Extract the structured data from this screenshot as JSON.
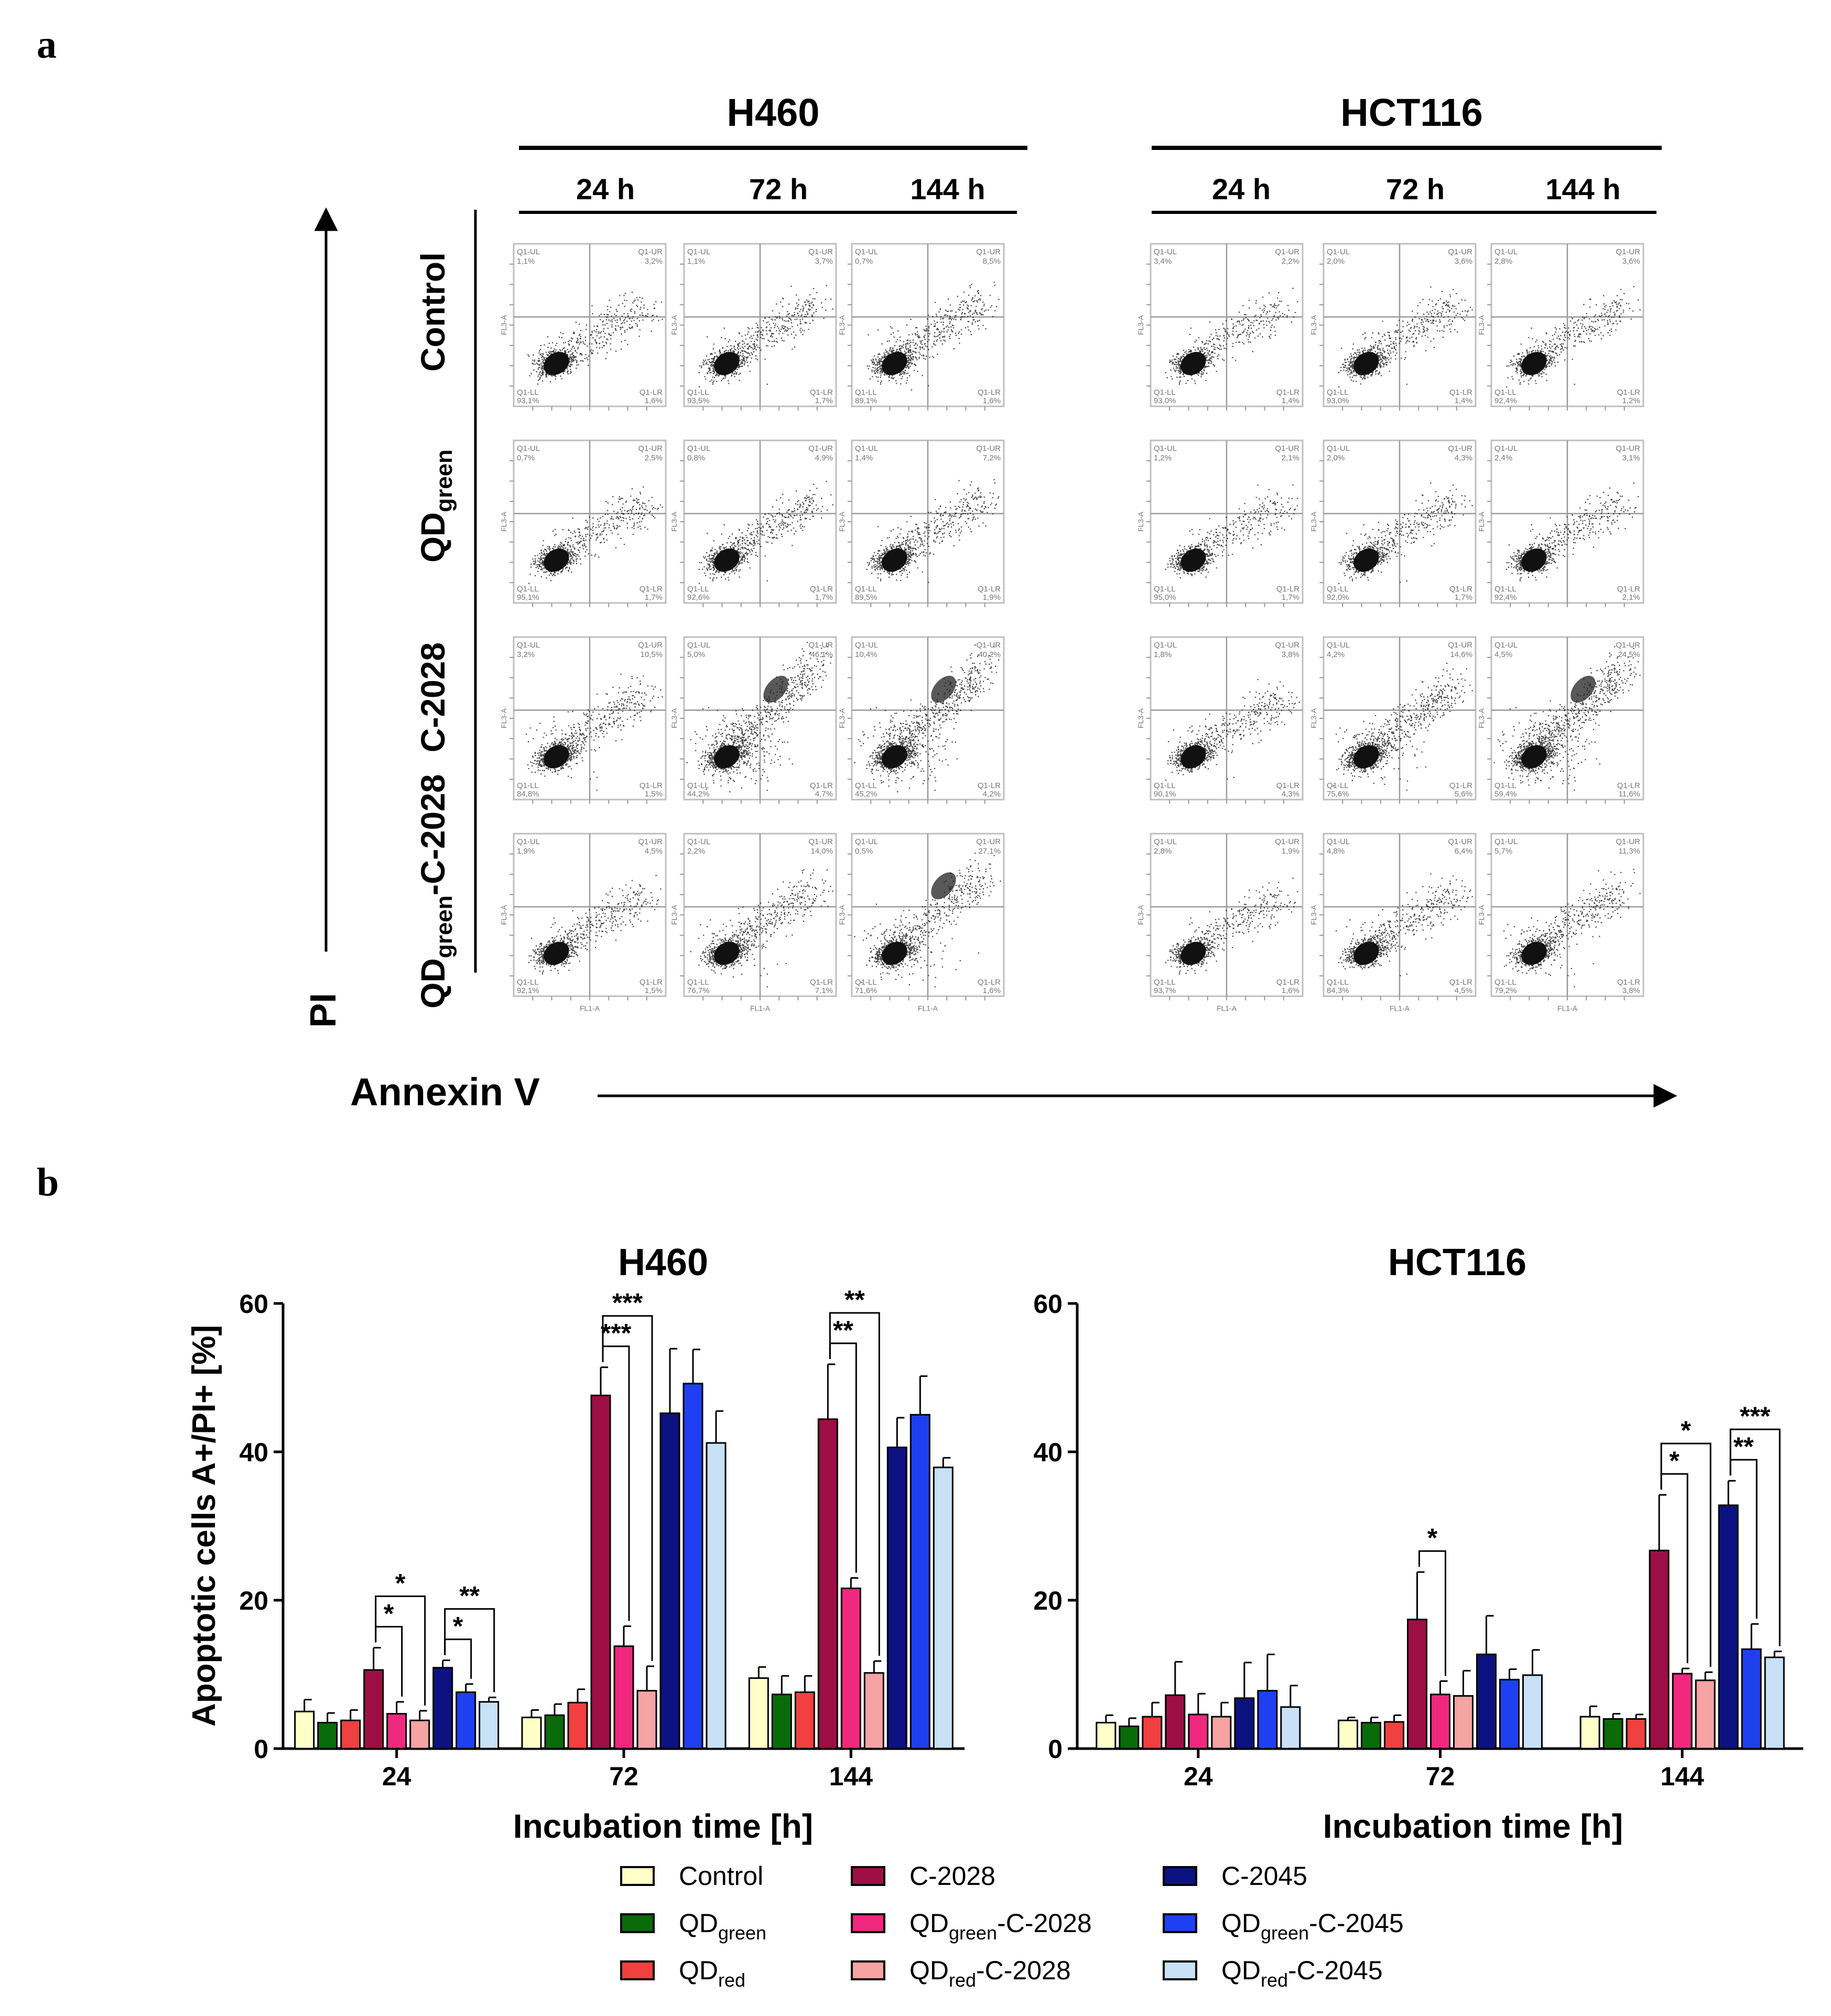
{
  "panel_a": {
    "label": "a",
    "groups": [
      {
        "name": "H460",
        "times": [
          "24 h",
          "72 h",
          "144 h"
        ]
      },
      {
        "name": "HCT116",
        "times": [
          "24 h",
          "72 h",
          "144 h"
        ]
      }
    ],
    "row_labels": [
      {
        "main": "Control",
        "sub": "",
        "tail": ""
      },
      {
        "main": "QD",
        "sub": "green",
        "tail": ""
      },
      {
        "main": "C-2028",
        "sub": "",
        "tail": ""
      },
      {
        "main": "QD",
        "sub": "green",
        "tail": "-C-2028"
      }
    ],
    "y_axis_label": "PI",
    "x_axis_label": "Annexin V",
    "quadrant_labels": [
      "Q1-UL",
      "Q1-UR",
      "Q1-LL",
      "Q1-LR"
    ],
    "axis_tick_labels": {
      "x": "FL1-A",
      "y": "FL3-A"
    },
    "plots": {
      "H460": [
        {
          "ul": "1,1%",
          "ur": "3,2%",
          "ll": "93,1%",
          "lr": "1,6%",
          "density": 0.15,
          "upper": 0.03
        },
        {
          "ul": "1,1%",
          "ur": "3,7%",
          "ll": "93,5%",
          "lr": "1,7%",
          "density": 0.18,
          "upper": 0.05
        },
        {
          "ul": "0,7%",
          "ur": "8,5%",
          "ll": "89,1%",
          "lr": "1,6%",
          "density": 0.22,
          "upper": 0.09
        },
        {
          "ul": "0,7%",
          "ur": "2,5%",
          "ll": "95,1%",
          "lr": "1,7%",
          "density": 0.12,
          "upper": 0.03
        },
        {
          "ul": "0,8%",
          "ur": "4,9%",
          "ll": "92,6%",
          "lr": "1,7%",
          "density": 0.18,
          "upper": 0.06
        },
        {
          "ul": "1,4%",
          "ur": "7,2%",
          "ll": "89,5%",
          "lr": "1,9%",
          "density": 0.2,
          "upper": 0.08
        },
        {
          "ul": "3,2%",
          "ur": "10,5%",
          "ll": "84,8%",
          "lr": "1,5%",
          "density": 0.2,
          "upper": 0.12
        },
        {
          "ul": "5,0%",
          "ur": "46,1%",
          "ll": "44,2%",
          "lr": "4,7%",
          "density": 0.35,
          "upper": 0.45
        },
        {
          "ul": "10,4%",
          "ur": "40,2%",
          "ll": "45,2%",
          "lr": "4,2%",
          "density": 0.35,
          "upper": 0.42
        },
        {
          "ul": "1,9%",
          "ur": "4,5%",
          "ll": "92,1%",
          "lr": "1,5%",
          "density": 0.15,
          "upper": 0.05
        },
        {
          "ul": "2,2%",
          "ur": "14,0%",
          "ll": "76,7%",
          "lr": "7,1%",
          "density": 0.22,
          "upper": 0.15
        },
        {
          "ul": "0,5%",
          "ur": "27,1%",
          "ll": "71,6%",
          "lr": "1,6%",
          "density": 0.25,
          "upper": 0.28
        }
      ],
      "HCT116": [
        {
          "ul": "3,4%",
          "ur": "2,2%",
          "ll": "93,0%",
          "lr": "1,4%",
          "density": 0.1,
          "upper": 0.02
        },
        {
          "ul": "2,0%",
          "ur": "3,6%",
          "ll": "93,0%",
          "lr": "1,4%",
          "density": 0.15,
          "upper": 0.04
        },
        {
          "ul": "2,8%",
          "ur": "3,6%",
          "ll": "92,4%",
          "lr": "1,2%",
          "density": 0.12,
          "upper": 0.04
        },
        {
          "ul": "1,2%",
          "ur": "2,1%",
          "ll": "95,0%",
          "lr": "1,7%",
          "density": 0.1,
          "upper": 0.02
        },
        {
          "ul": "2,0%",
          "ur": "4,3%",
          "ll": "92,0%",
          "lr": "1,7%",
          "density": 0.15,
          "upper": 0.05
        },
        {
          "ul": "2,4%",
          "ur": "3,1%",
          "ll": "92,4%",
          "lr": "2,1%",
          "density": 0.13,
          "upper": 0.04
        },
        {
          "ul": "1,8%",
          "ur": "3,8%",
          "ll": "90,1%",
          "lr": "4,3%",
          "density": 0.15,
          "upper": 0.05
        },
        {
          "ul": "4,2%",
          "ur": "14,6%",
          "ll": "75,6%",
          "lr": "5,6%",
          "density": 0.3,
          "upper": 0.2
        },
        {
          "ul": "4,5%",
          "ur": "24,5%",
          "ll": "59,4%",
          "lr": "11,6%",
          "density": 0.4,
          "upper": 0.4
        },
        {
          "ul": "2,8%",
          "ur": "1,9%",
          "ll": "93,7%",
          "lr": "1,6%",
          "density": 0.12,
          "upper": 0.02
        },
        {
          "ul": "4,8%",
          "ur": "6,4%",
          "ll": "84,3%",
          "lr": "4,5%",
          "density": 0.2,
          "upper": 0.08
        },
        {
          "ul": "5,7%",
          "ur": "11,3%",
          "ll": "79,2%",
          "lr": "3,8%",
          "density": 0.2,
          "upper": 0.12
        }
      ]
    }
  },
  "panel_b": {
    "label": "b",
    "legend": [
      {
        "main": "Control",
        "sub": "",
        "tail": "",
        "color": "#ffffc8"
      },
      {
        "main": "QD",
        "sub": "green",
        "tail": "",
        "color": "#0a6b0a"
      },
      {
        "main": "QD",
        "sub": "red",
        "tail": "",
        "color": "#f04040"
      },
      {
        "main": "C-2028",
        "sub": "",
        "tail": "",
        "color": "#9e0f45"
      },
      {
        "main": "QD",
        "sub": "green",
        "tail": "-C-2028",
        "color": "#f0287e"
      },
      {
        "main": "QD",
        "sub": "red",
        "tail": "-C-2028",
        "color": "#f5a3a3"
      },
      {
        "main": "C-2045",
        "sub": "",
        "tail": "",
        "color": "#0c1280"
      },
      {
        "main": "QD",
        "sub": "green",
        "tail": "-C-2045",
        "color": "#1e40f0"
      },
      {
        "main": "QD",
        "sub": "red",
        "tail": "-C-2045",
        "color": "#c8e1f7"
      }
    ]
  },
  "chart_data": [
    {
      "type": "bar",
      "title": "H460",
      "xlabel": "Incubation time [h]",
      "ylabel": "Apoptotic cells A+/PI+ [%]",
      "ylim": [
        0,
        60
      ],
      "yticks": [
        0,
        20,
        40,
        60
      ],
      "categories": [
        "24",
        "72",
        "144"
      ],
      "series": [
        {
          "name": "Control",
          "values": [
            5.0,
            4.2,
            9.5
          ],
          "errors": [
            1.6,
            1.0,
            1.5
          ]
        },
        {
          "name": "QDgreen",
          "values": [
            3.5,
            4.5,
            7.3
          ],
          "errors": [
            1.3,
            1.5,
            2.5
          ]
        },
        {
          "name": "QDred",
          "values": [
            3.8,
            6.2,
            7.6
          ],
          "errors": [
            1.4,
            1.8,
            2.2
          ]
        },
        {
          "name": "C-2028",
          "values": [
            10.6,
            47.6,
            44.4
          ],
          "errors": [
            3.0,
            3.8,
            7.4
          ]
        },
        {
          "name": "QDgreen-C-2028",
          "values": [
            4.7,
            13.8,
            21.6
          ],
          "errors": [
            1.6,
            2.7,
            1.4
          ]
        },
        {
          "name": "QDred-C-2028",
          "values": [
            3.8,
            7.8,
            10.2
          ],
          "errors": [
            1.3,
            3.3,
            1.6
          ]
        },
        {
          "name": "C-2045",
          "values": [
            10.9,
            45.2,
            40.6
          ],
          "errors": [
            1.0,
            8.7,
            4.0
          ]
        },
        {
          "name": "QDgreen-C-2045",
          "values": [
            7.6,
            49.2,
            45.0
          ],
          "errors": [
            1.1,
            4.6,
            5.2
          ]
        },
        {
          "name": "QDred-C-2045",
          "values": [
            6.3,
            41.2,
            37.9
          ],
          "errors": [
            0.6,
            4.3,
            1.3
          ]
        }
      ],
      "significance": [
        {
          "category": "24",
          "from": "C-2028",
          "to": "QDgreen-C-2028",
          "label": "*"
        },
        {
          "category": "24",
          "from": "C-2028",
          "to": "QDred-C-2028",
          "label": "*"
        },
        {
          "category": "24",
          "from": "C-2045",
          "to": "QDgreen-C-2045",
          "label": "*"
        },
        {
          "category": "24",
          "from": "C-2045",
          "to": "QDred-C-2045",
          "label": "**"
        },
        {
          "category": "72",
          "from": "C-2028",
          "to": "QDgreen-C-2028",
          "label": "***"
        },
        {
          "category": "72",
          "from": "C-2028",
          "to": "QDred-C-2028",
          "label": "***"
        },
        {
          "category": "144",
          "from": "C-2028",
          "to": "QDgreen-C-2028",
          "label": "**"
        },
        {
          "category": "144",
          "from": "C-2028",
          "to": "QDred-C-2028",
          "label": "**"
        }
      ]
    },
    {
      "type": "bar",
      "title": "HCT116",
      "xlabel": "Incubation time [h]",
      "ylabel": "",
      "ylim": [
        0,
        60
      ],
      "yticks": [
        0,
        20,
        40,
        60
      ],
      "categories": [
        "24",
        "72",
        "144"
      ],
      "series": [
        {
          "name": "Control",
          "values": [
            3.5,
            3.8,
            4.3
          ],
          "errors": [
            1.0,
            0.4,
            1.4
          ]
        },
        {
          "name": "QDgreen",
          "values": [
            3.0,
            3.5,
            4.0
          ],
          "errors": [
            1.1,
            0.7,
            0.7
          ]
        },
        {
          "name": "QDred",
          "values": [
            4.3,
            3.6,
            4.0
          ],
          "errors": [
            1.9,
            0.9,
            0.6
          ]
        },
        {
          "name": "C-2028",
          "values": [
            7.2,
            17.4,
            26.7
          ],
          "errors": [
            4.5,
            6.4,
            7.5
          ]
        },
        {
          "name": "QDgreen-C-2028",
          "values": [
            4.6,
            7.3,
            10.1
          ],
          "errors": [
            2.8,
            1.8,
            0.7
          ]
        },
        {
          "name": "QDred-C-2028",
          "values": [
            4.3,
            7.1,
            9.2
          ],
          "errors": [
            1.9,
            3.4,
            1.1
          ]
        },
        {
          "name": "C-2045",
          "values": [
            6.8,
            12.7,
            32.8
          ],
          "errors": [
            4.8,
            5.2,
            3.3
          ]
        },
        {
          "name": "QDgreen-C-2045",
          "values": [
            7.8,
            9.3,
            13.4
          ],
          "errors": [
            4.9,
            1.4,
            3.4
          ]
        },
        {
          "name": "QDred-C-2045",
          "values": [
            5.6,
            9.9,
            12.3
          ],
          "errors": [
            2.9,
            3.4,
            0.8
          ]
        }
      ],
      "significance": [
        {
          "category": "72",
          "from": "C-2028",
          "to": "QDgreen-C-2028",
          "label": "*"
        },
        {
          "category": "144",
          "from": "C-2028",
          "to": "QDgreen-C-2028",
          "label": "*"
        },
        {
          "category": "144",
          "from": "C-2028",
          "to": "QDred-C-2028",
          "label": "*"
        },
        {
          "category": "144",
          "from": "C-2045",
          "to": "QDgreen-C-2045",
          "label": "**"
        },
        {
          "category": "144",
          "from": "C-2045",
          "to": "QDred-C-2045",
          "label": "***"
        }
      ]
    }
  ]
}
